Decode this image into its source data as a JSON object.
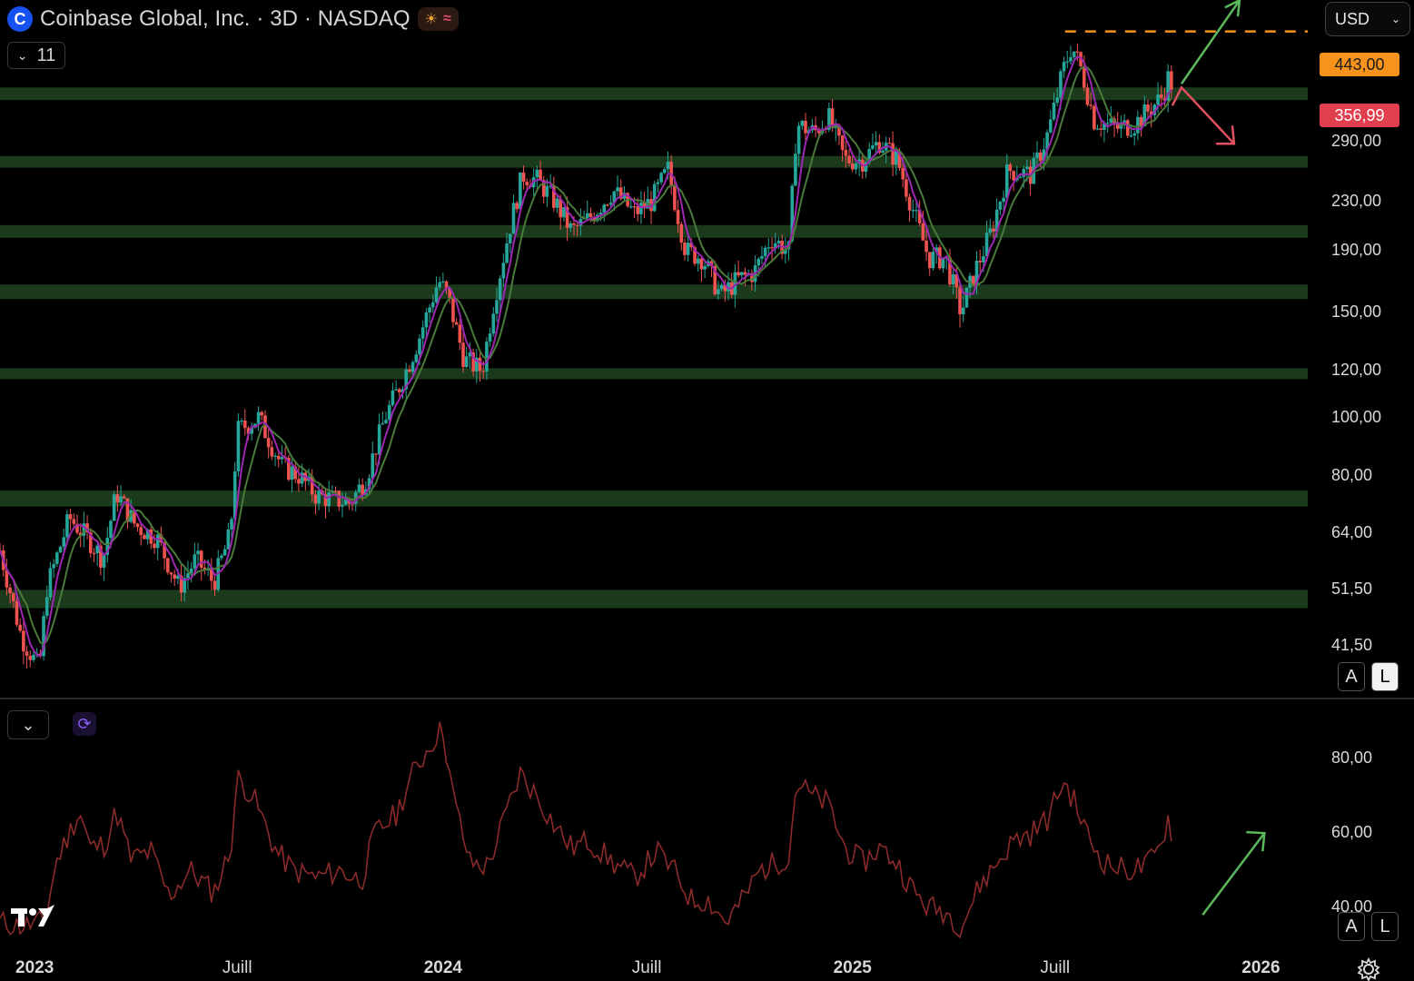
{
  "header": {
    "title": "Coinbase Global, Inc. · 3D · NASDAQ",
    "logo_letter": "C",
    "interval_count": "11",
    "currency": "USD"
  },
  "scale_buttons": {
    "auto": "A",
    "log": "L"
  },
  "price_tags": {
    "target": "443,00",
    "current": "356,99",
    "target_color": "#f7931a",
    "current_color": "#e0404e"
  },
  "price_axis_labels": [
    "290,00",
    "230,00",
    "190,00",
    "150,00",
    "120,00",
    "100,00",
    "80,00",
    "64,00",
    "51,50",
    "41,50"
  ],
  "rsi_axis_labels": [
    "80,00",
    "60,00",
    "40,00"
  ],
  "time_axis_labels": [
    {
      "label": "2023",
      "year": true
    },
    {
      "label": "Juill",
      "year": false
    },
    {
      "label": "2024",
      "year": true
    },
    {
      "label": "Juill",
      "year": false
    },
    {
      "label": "2025",
      "year": true
    },
    {
      "label": "Juill",
      "year": false
    },
    {
      "label": "2026",
      "year": true
    }
  ],
  "chart_data": {
    "type": "candlestick",
    "symbol": "Coinbase Global, Inc.",
    "timeframe": "3D",
    "exchange": "NASDAQ",
    "y_scale": "log",
    "ylim": [
      34,
      500
    ],
    "x_range": [
      "2022-12-01",
      "2026-02-20"
    ],
    "colors": {
      "up": "#26a69a",
      "down": "#ef5350",
      "zones": "#1b3a1b",
      "ma_fast": "#9c27b0",
      "ma_slow": "#4a7a3a",
      "rsi": "#8b2a2a",
      "arrow_up": "#5cb85c",
      "arrow_down": "#e05060",
      "target_line": "#f7931a"
    },
    "support_resistance_zones": [
      {
        "low": 340,
        "high": 357
      },
      {
        "low": 262,
        "high": 274
      },
      {
        "low": 200,
        "high": 210
      },
      {
        "low": 158,
        "high": 167
      },
      {
        "low": 116,
        "high": 121
      },
      {
        "low": 71,
        "high": 75.5
      },
      {
        "low": 48,
        "high": 51.5
      }
    ],
    "target_level": 443.0,
    "current_price": 356.99,
    "price_path": [
      [
        "2022-12-01",
        60
      ],
      [
        "2022-12-20",
        43
      ],
      [
        "2023-01-05",
        38
      ],
      [
        "2023-01-12",
        52
      ],
      [
        "2023-02-01",
        68
      ],
      [
        "2023-02-20",
        62
      ],
      [
        "2023-03-03",
        58
      ],
      [
        "2023-03-15",
        75
      ],
      [
        "2023-04-01",
        66
      ],
      [
        "2023-04-20",
        63
      ],
      [
        "2023-05-10",
        52
      ],
      [
        "2023-05-25",
        58
      ],
      [
        "2023-06-10",
        53
      ],
      [
        "2023-06-25",
        64
      ],
      [
        "2023-07-01",
        95
      ],
      [
        "2023-07-20",
        100
      ],
      [
        "2023-08-10",
        83
      ],
      [
        "2023-08-25",
        80
      ],
      [
        "2023-09-10",
        74
      ],
      [
        "2023-10-10",
        72
      ],
      [
        "2023-10-25",
        80
      ],
      [
        "2023-11-10",
        100
      ],
      [
        "2023-11-25",
        115
      ],
      [
        "2023-12-10",
        135
      ],
      [
        "2023-12-28",
        170
      ],
      [
        "2024-01-05",
        160
      ],
      [
        "2024-01-20",
        125
      ],
      [
        "2024-02-05",
        120
      ],
      [
        "2024-02-15",
        155
      ],
      [
        "2024-03-01",
        210
      ],
      [
        "2024-03-12",
        255
      ],
      [
        "2024-03-25",
        250
      ],
      [
        "2024-04-10",
        230
      ],
      [
        "2024-04-25",
        205
      ],
      [
        "2024-05-10",
        215
      ],
      [
        "2024-06-01",
        240
      ],
      [
        "2024-06-20",
        220
      ],
      [
        "2024-07-05",
        230
      ],
      [
        "2024-07-20",
        260
      ],
      [
        "2024-08-05",
        190
      ],
      [
        "2024-08-20",
        185
      ],
      [
        "2024-09-05",
        160
      ],
      [
        "2024-09-20",
        170
      ],
      [
        "2024-10-05",
        175
      ],
      [
        "2024-10-20",
        200
      ],
      [
        "2024-11-05",
        190
      ],
      [
        "2024-11-12",
        310
      ],
      [
        "2024-11-28",
        300
      ],
      [
        "2024-12-10",
        320
      ],
      [
        "2024-12-25",
        270
      ],
      [
        "2025-01-10",
        270
      ],
      [
        "2025-01-25",
        290
      ],
      [
        "2025-02-10",
        270
      ],
      [
        "2025-02-25",
        220
      ],
      [
        "2025-03-10",
        185
      ],
      [
        "2025-03-25",
        185
      ],
      [
        "2025-04-08",
        150
      ],
      [
        "2025-04-20",
        175
      ],
      [
        "2025-05-05",
        205
      ],
      [
        "2025-05-20",
        260
      ],
      [
        "2025-06-10",
        255
      ],
      [
        "2025-06-25",
        300
      ],
      [
        "2025-07-08",
        380
      ],
      [
        "2025-07-16",
        420
      ],
      [
        "2025-07-25",
        380
      ],
      [
        "2025-08-05",
        315
      ],
      [
        "2025-08-25",
        305
      ],
      [
        "2025-09-10",
        310
      ],
      [
        "2025-09-25",
        330
      ],
      [
        "2025-10-05",
        345
      ],
      [
        "2025-10-10",
        370
      ],
      [
        "2025-10-15",
        357
      ]
    ],
    "rsi": {
      "ylim": [
        28,
        96
      ],
      "labels_shown": [
        80,
        60,
        40
      ],
      "path": [
        [
          "2022-12-01",
          36
        ],
        [
          "2022-12-20",
          35
        ],
        [
          "2023-01-10",
          36
        ],
        [
          "2023-01-20",
          52
        ],
        [
          "2023-02-01",
          60
        ],
        [
          "2023-02-10",
          66
        ],
        [
          "2023-02-20",
          56
        ],
        [
          "2023-03-05",
          57
        ],
        [
          "2023-03-15",
          66
        ],
        [
          "2023-03-28",
          53
        ],
        [
          "2023-04-15",
          55
        ],
        [
          "2023-05-01",
          43
        ],
        [
          "2023-05-20",
          50
        ],
        [
          "2023-06-10",
          44
        ],
        [
          "2023-06-25",
          55
        ],
        [
          "2023-07-01",
          75
        ],
        [
          "2023-07-15",
          70
        ],
        [
          "2023-08-05",
          55
        ],
        [
          "2023-08-20",
          50
        ],
        [
          "2023-09-10",
          48
        ],
        [
          "2023-10-01",
          50
        ],
        [
          "2023-10-20",
          47
        ],
        [
          "2023-11-01",
          60
        ],
        [
          "2023-11-20",
          65
        ],
        [
          "2023-12-05",
          76
        ],
        [
          "2023-12-25",
          86
        ],
        [
          "2024-01-01",
          88
        ],
        [
          "2024-01-10",
          70
        ],
        [
          "2024-01-25",
          52
        ],
        [
          "2024-02-10",
          51
        ],
        [
          "2024-02-25",
          64
        ],
        [
          "2024-03-10",
          76
        ],
        [
          "2024-03-25",
          70
        ],
        [
          "2024-04-10",
          62
        ],
        [
          "2024-04-25",
          56
        ],
        [
          "2024-05-10",
          58
        ],
        [
          "2024-06-01",
          52
        ],
        [
          "2024-06-20",
          48
        ],
        [
          "2024-07-10",
          55
        ],
        [
          "2024-07-25",
          50
        ],
        [
          "2024-08-10",
          42
        ],
        [
          "2024-08-25",
          42
        ],
        [
          "2024-09-10",
          36
        ],
        [
          "2024-09-25",
          42
        ],
        [
          "2024-10-10",
          50
        ],
        [
          "2024-10-25",
          52
        ],
        [
          "2024-11-05",
          54
        ],
        [
          "2024-11-12",
          74
        ],
        [
          "2024-11-25",
          70
        ],
        [
          "2024-12-10",
          68
        ],
        [
          "2024-12-25",
          56
        ],
        [
          "2025-01-10",
          52
        ],
        [
          "2025-01-25",
          56
        ],
        [
          "2025-02-10",
          52
        ],
        [
          "2025-02-25",
          44
        ],
        [
          "2025-03-10",
          40
        ],
        [
          "2025-03-25",
          39
        ],
        [
          "2025-04-08",
          35
        ],
        [
          "2025-04-25",
          46
        ],
        [
          "2025-05-10",
          52
        ],
        [
          "2025-05-25",
          58
        ],
        [
          "2025-06-10",
          60
        ],
        [
          "2025-06-25",
          64
        ],
        [
          "2025-07-08",
          74
        ],
        [
          "2025-07-16",
          70
        ],
        [
          "2025-08-01",
          58
        ],
        [
          "2025-08-15",
          52
        ],
        [
          "2025-09-01",
          50
        ],
        [
          "2025-09-20",
          51
        ],
        [
          "2025-10-01",
          55
        ],
        [
          "2025-10-10",
          64
        ],
        [
          "2025-10-15",
          58
        ]
      ]
    }
  }
}
